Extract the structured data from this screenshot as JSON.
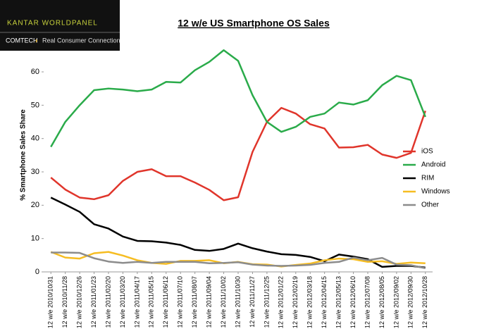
{
  "logo": {
    "brand": "KANTAR WORLDPANEL",
    "unit": "COMTECH",
    "tagline": "Real Consumer Connection"
  },
  "chart_data": {
    "type": "line",
    "title": "12 w/e US Smartphone OS Sales",
    "y_label": "% Smartphone Sales Share",
    "categories": [
      "12 w/e 2010/10/31",
      "12 w/e 2010/11/28",
      "12 w/e 2010/12/26",
      "12 w/e 2011/01/23",
      "12 w/e 2011/02/20",
      "12 w/e 2011/03/20",
      "12 w/e 2011/04/17",
      "12 w/e 2011/05/15",
      "12 w/e 2011/06/12",
      "12 w/e 2011/07/10",
      "12 w/e 2011/08/07",
      "12 w/e 2011/09/04",
      "12 w/e 2011/10/02",
      "12 w/e 2011/10/30",
      "12 w/e 2011/11/27",
      "12 w/e 2011/12/25",
      "12 w/e 2012/01/22",
      "12 w/e 2012/02/19",
      "12 w/e 2012/03/18",
      "12 w/e 2012/04/15",
      "12 w/e 2012/05/13",
      "12 w/e 2012/06/10",
      "12 w/e 2012/07/08",
      "12 w/e 2012/08/05",
      "12 w/e 2012/09/02",
      "12 w/e 2012/09/30",
      "12 w/e 2012/10/28"
    ],
    "series": [
      {
        "name": "iOS",
        "color": "#e0352b",
        "values": [
          28.3,
          24.7,
          22.3,
          21.8,
          23,
          27.3,
          30,
          30.8,
          28.7,
          28.7,
          26.8,
          24.6,
          21.5,
          22.4,
          36,
          45,
          49.2,
          47.5,
          44.3,
          43,
          37.3,
          37.4,
          38.1,
          35.2,
          34.2,
          35.7,
          48.3
        ]
      },
      {
        "name": "Android",
        "color": "#2aab4a",
        "values": [
          37.5,
          45,
          50,
          54.5,
          55,
          54.7,
          54.2,
          54.7,
          57,
          56.8,
          60.5,
          63,
          66.5,
          63.3,
          53,
          45,
          42,
          43.5,
          46.5,
          47.5,
          50.8,
          50.2,
          51.5,
          56,
          58.8,
          57.5,
          46.5
        ]
      },
      {
        "name": "RIM",
        "color": "#000000",
        "values": [
          22.3,
          20.2,
          18,
          14.3,
          13,
          10.6,
          9.3,
          9.2,
          8.8,
          8.1,
          6.6,
          6.3,
          6.9,
          8.5,
          7.1,
          6.1,
          5.3,
          5.1,
          4.5,
          3.2,
          5.2,
          4.6,
          3.8,
          1.5,
          1.8,
          1.8,
          1.3
        ]
      },
      {
        "name": "Windows",
        "color": "#f6bd22",
        "values": [
          6,
          4.3,
          4,
          5.6,
          6,
          4.9,
          3.5,
          2.7,
          2.4,
          3.3,
          3.3,
          3.5,
          2.6,
          3,
          2.3,
          2.2,
          1.6,
          2.1,
          2.5,
          3.5,
          4,
          3.8,
          3,
          3.2,
          2.4,
          2.8,
          2.6
        ]
      },
      {
        "name": "Other",
        "color": "#8c8c8c",
        "values": [
          5.8,
          5.8,
          5.7,
          4.1,
          3.1,
          2.7,
          3,
          2.7,
          3,
          3,
          3,
          2.6,
          2.7,
          2.9,
          2.2,
          1.9,
          1.8,
          1.9,
          2.1,
          2.7,
          3,
          4.3,
          3.5,
          4.2,
          2.2,
          2,
          1.1
        ]
      }
    ],
    "ylim": [
      0,
      67
    ],
    "yticks": [
      0,
      10,
      20,
      30,
      40,
      50,
      60
    ],
    "legend": "right"
  }
}
